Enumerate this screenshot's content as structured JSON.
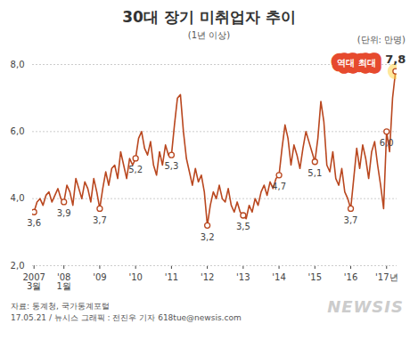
{
  "chart_data": {
    "type": "line",
    "title": "30대 장기 미취업자 추이",
    "subtitle": "(1년 이상)",
    "unit": "(단위: 만명)",
    "annotation": "역대 최대",
    "source": "자료: 통계청, 국가통계포털",
    "credit": "17.05.21 / 뉴시스 그래픽 : 전진우 기자 618tue@newsis.com",
    "logo": "NEWSIS",
    "color": "#b9471f",
    "marker": "circle",
    "grid": true,
    "data_labels": true,
    "categories": [
      "2007\n3월",
      null,
      null,
      null,
      null,
      null,
      null,
      null,
      null,
      null,
      "'08\n1월",
      null,
      null,
      null,
      null,
      null,
      null,
      null,
      null,
      null,
      null,
      null,
      "'09",
      null,
      null,
      null,
      null,
      null,
      null,
      null,
      null,
      null,
      null,
      null,
      "'10",
      null,
      null,
      null,
      null,
      null,
      null,
      null,
      null,
      null,
      null,
      null,
      "'11",
      null,
      null,
      null,
      null,
      null,
      null,
      null,
      null,
      null,
      null,
      null,
      "'12",
      null,
      null,
      null,
      null,
      null,
      null,
      null,
      null,
      null,
      null,
      null,
      "'13",
      null,
      null,
      null,
      null,
      null,
      null,
      null,
      null,
      null,
      null,
      null,
      "'14",
      null,
      null,
      null,
      null,
      null,
      null,
      null,
      null,
      null,
      null,
      null,
      "'15",
      null,
      null,
      null,
      null,
      null,
      null,
      null,
      null,
      null,
      null,
      null,
      "'16",
      null,
      null,
      null,
      null,
      null,
      null,
      null,
      null,
      null,
      null,
      null,
      "'17년",
      null,
      null,
      null
    ],
    "values": [
      3.6,
      3.9,
      4.0,
      3.8,
      4.1,
      4.2,
      3.9,
      4.1,
      4.3,
      4.0,
      3.9,
      4.4,
      4.2,
      3.8,
      4.6,
      4.3,
      4.0,
      4.5,
      4.3,
      3.9,
      4.6,
      4.2,
      3.7,
      4.3,
      4.8,
      4.4,
      4.9,
      5.0,
      4.6,
      5.4,
      5.0,
      4.6,
      5.2,
      5.0,
      5.2,
      5.8,
      6.0,
      5.5,
      5.3,
      5.7,
      5.0,
      4.7,
      5.4,
      5.0,
      5.6,
      5.3,
      5.3,
      6.2,
      7.0,
      7.1,
      6.0,
      5.2,
      4.8,
      4.4,
      4.9,
      4.5,
      4.7,
      4.2,
      3.2,
      3.8,
      4.2,
      4.0,
      4.4,
      4.0,
      3.9,
      4.3,
      3.8,
      3.6,
      3.9,
      3.6,
      3.5,
      3.4,
      3.8,
      3.6,
      4.0,
      3.8,
      4.2,
      4.4,
      4.1,
      4.5,
      4.3,
      4.6,
      4.7,
      5.5,
      6.2,
      5.8,
      5.0,
      5.6,
      5.3,
      4.9,
      5.5,
      6.0,
      5.7,
      5.4,
      5.1,
      5.8,
      6.9,
      6.3,
      5.0,
      4.8,
      5.4,
      4.6,
      4.4,
      4.9,
      4.2,
      4.0,
      3.7,
      4.6,
      5.5,
      4.9,
      5.6,
      5.2,
      4.6,
      5.4,
      5.7,
      5.0,
      4.4,
      3.7,
      6.0,
      5.4,
      7.0,
      7.8
    ],
    "value_labels": [
      "3,6",
      null,
      null,
      null,
      null,
      null,
      null,
      null,
      null,
      null,
      "3,9",
      null,
      null,
      null,
      null,
      null,
      null,
      null,
      null,
      null,
      null,
      null,
      "3,7",
      null,
      null,
      null,
      null,
      null,
      null,
      null,
      null,
      null,
      null,
      null,
      "5,2",
      null,
      null,
      null,
      null,
      null,
      null,
      null,
      null,
      null,
      null,
      null,
      "5,3",
      null,
      null,
      null,
      null,
      null,
      null,
      null,
      null,
      null,
      null,
      null,
      "3,2",
      null,
      null,
      null,
      null,
      null,
      null,
      null,
      null,
      null,
      null,
      null,
      "3,5",
      null,
      null,
      null,
      null,
      null,
      null,
      null,
      null,
      null,
      null,
      null,
      "4,7",
      null,
      null,
      null,
      null,
      null,
      null,
      null,
      null,
      null,
      null,
      null,
      "5,1",
      null,
      null,
      null,
      null,
      null,
      null,
      null,
      null,
      null,
      null,
      null,
      "3,7",
      null,
      null,
      null,
      null,
      null,
      null,
      null,
      null,
      null,
      null,
      null,
      "6,0",
      null,
      null,
      "7,8"
    ],
    "ylim": [
      2,
      8
    ],
    "yticks": [
      {
        "value": 2,
        "label": "2,0"
      },
      {
        "value": 4,
        "label": "4,0"
      },
      {
        "value": 6,
        "label": "6,0"
      },
      {
        "value": 8,
        "label": "8,0"
      }
    ]
  }
}
